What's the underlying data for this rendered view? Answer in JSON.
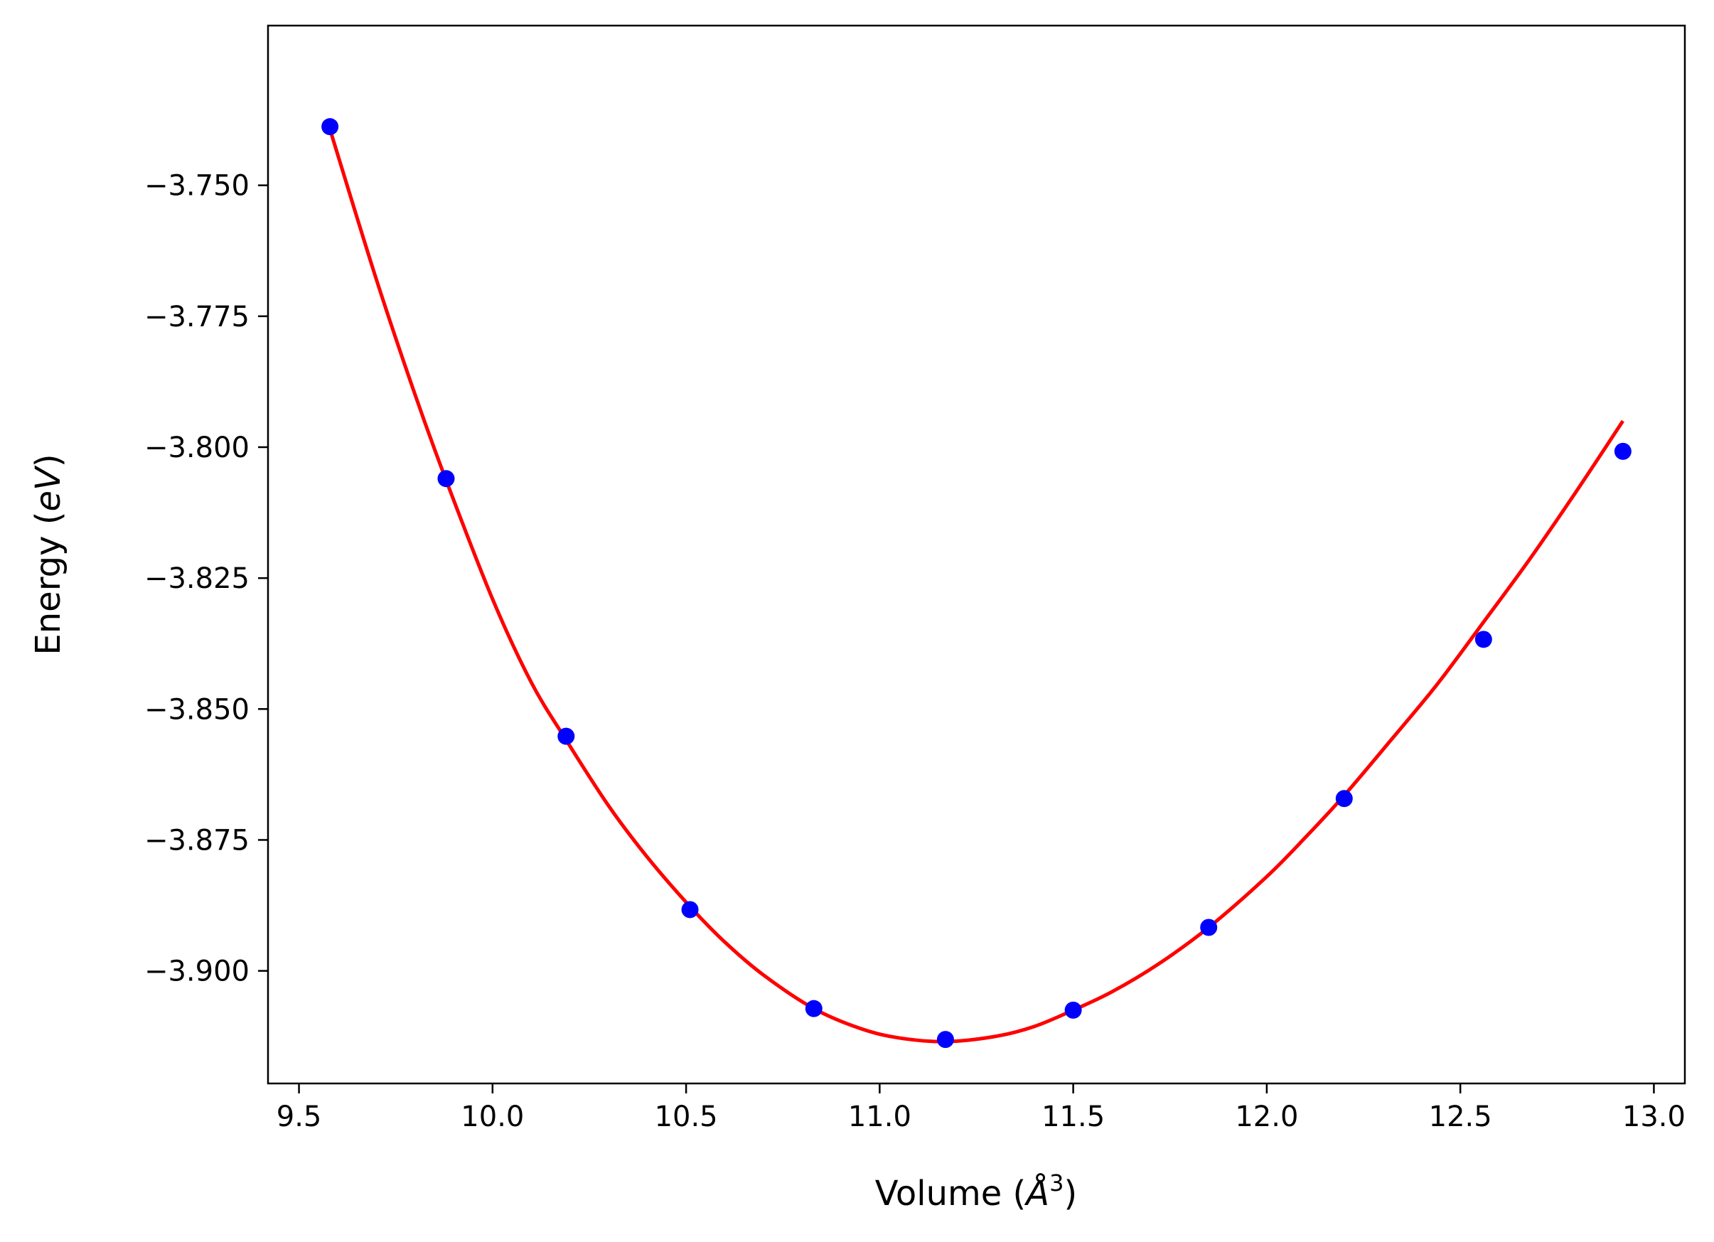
{
  "chart_data": {
    "type": "scatter",
    "title": "",
    "xlabel_text": "Volume (",
    "xlabel_symbol": "Å",
    "xlabel_exp": "3",
    "xlabel_close": ")",
    "ylabel_text": "Energy (",
    "ylabel_symbol": "eV",
    "ylabel_close": ")",
    "xlim": [
      9.42,
      13.08
    ],
    "ylim": [
      -3.9215,
      -3.7195
    ],
    "xticks": [
      9.5,
      10.0,
      10.5,
      11.0,
      11.5,
      12.0,
      12.5,
      13.0
    ],
    "xtick_labels": [
      "9.5",
      "10.0",
      "10.5",
      "11.0",
      "11.5",
      "12.0",
      "12.5",
      "13.0"
    ],
    "yticks": [
      -3.75,
      -3.775,
      -3.8,
      -3.825,
      -3.85,
      -3.875,
      -3.9
    ],
    "ytick_labels": [
      "−3.750",
      "−3.775",
      "−3.800",
      "−3.825",
      "−3.850",
      "−3.875",
      "−3.900"
    ],
    "grid": false,
    "series": [
      {
        "kind": "points",
        "color": "#0000ff",
        "x": [
          9.58,
          9.88,
          10.19,
          10.51,
          10.83,
          11.17,
          11.5,
          11.85,
          12.2,
          12.56,
          12.92
        ],
        "y": [
          -3.7388,
          -3.806,
          -3.8552,
          -3.8883,
          -3.9072,
          -3.9131,
          -3.9075,
          -3.8917,
          -3.8671,
          -3.8367,
          -3.8008
        ]
      },
      {
        "kind": "fit-curve",
        "color": "#ff0000",
        "x": [
          9.58,
          9.7,
          9.8,
          9.88,
          10.0,
          10.1,
          10.19,
          10.3,
          10.4,
          10.51,
          10.6,
          10.7,
          10.83,
          10.95,
          11.05,
          11.17,
          11.3,
          11.4,
          11.5,
          11.6,
          11.72,
          11.85,
          12.0,
          12.1,
          12.2,
          12.32,
          12.44,
          12.56,
          12.68,
          12.8,
          12.92
        ],
        "y": [
          -3.7393,
          -3.768,
          -3.79,
          -3.8063,
          -3.829,
          -3.8449,
          -3.8559,
          -3.8685,
          -3.8783,
          -3.8877,
          -3.8945,
          -3.9008,
          -3.9072,
          -3.911,
          -3.9128,
          -3.9135,
          -3.9125,
          -3.9106,
          -3.9075,
          -3.904,
          -3.8987,
          -3.8917,
          -3.882,
          -3.8745,
          -3.8665,
          -3.856,
          -3.8453,
          -3.8334,
          -3.8213,
          -3.8084,
          -3.795
        ]
      }
    ]
  }
}
